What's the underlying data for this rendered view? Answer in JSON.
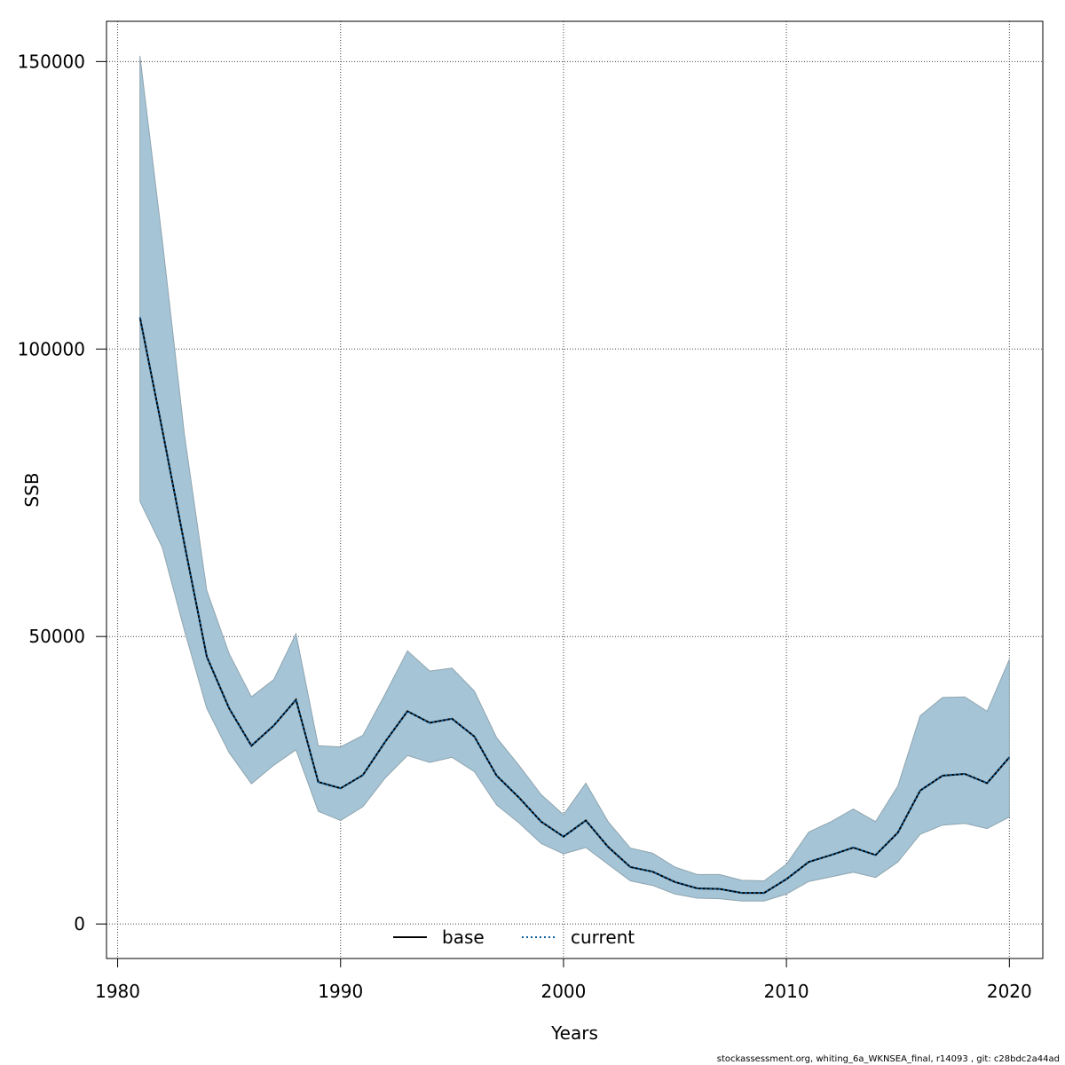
{
  "chart_data": {
    "type": "area",
    "title": "",
    "xlabel": "Years",
    "ylabel": "SSB",
    "xlim": [
      1979.5,
      2021.5
    ],
    "ylim": [
      -6000,
      157000
    ],
    "grid": true,
    "x_ticks": [
      1980,
      1990,
      2000,
      2010,
      2020
    ],
    "y_ticks": [
      0,
      50000,
      100000,
      150000
    ],
    "x_tick_labels": [
      "1980",
      "1990",
      "2000",
      "2010",
      "2020"
    ],
    "y_tick_labels": [
      "0",
      "50000",
      "100000",
      "150000"
    ],
    "years": [
      1981,
      1982,
      1983,
      1984,
      1985,
      1986,
      1987,
      1988,
      1989,
      1990,
      1991,
      1992,
      1993,
      1994,
      1995,
      1996,
      1997,
      1998,
      1999,
      2000,
      2001,
      2002,
      2003,
      2004,
      2005,
      2006,
      2007,
      2008,
      2009,
      2010,
      2011,
      2012,
      2013,
      2014,
      2015,
      2016,
      2017,
      2018,
      2019,
      2020
    ],
    "series": [
      {
        "name": "base",
        "style": "solid",
        "color": "#000000",
        "values": [
          105500,
          86000,
          66000,
          46500,
          37500,
          31000,
          34500,
          39000,
          24700,
          23600,
          25900,
          31700,
          37000,
          35000,
          35700,
          32600,
          25800,
          22000,
          17800,
          15200,
          18000,
          13400,
          9900,
          9100,
          7300,
          6200,
          6100,
          5400,
          5400,
          7800,
          10800,
          12000,
          13300,
          12000,
          15900,
          23200,
          25800,
          26100,
          24500,
          29000
        ]
      },
      {
        "name": "current",
        "style": "dotted",
        "color": "#0b5fa0",
        "values": [
          105500,
          86000,
          66000,
          46500,
          37500,
          31000,
          34500,
          39000,
          24700,
          23600,
          25900,
          31700,
          37000,
          35000,
          35700,
          32600,
          25800,
          22000,
          17800,
          15200,
          18000,
          13400,
          9900,
          9100,
          7300,
          6200,
          6100,
          5400,
          5400,
          7800,
          10800,
          12000,
          13300,
          12000,
          15900,
          23200,
          25800,
          26100,
          24500,
          29000
        ]
      }
    ],
    "confidence_band": {
      "color": "#a5c4d5",
      "lower": [
        73500,
        65500,
        51000,
        37500,
        29800,
        24400,
        27600,
        30300,
        19600,
        18000,
        20400,
        25400,
        29300,
        28100,
        29000,
        26500,
        20700,
        17600,
        14000,
        12200,
        13300,
        10400,
        7500,
        6700,
        5200,
        4500,
        4400,
        4000,
        4000,
        5200,
        7400,
        8200,
        9000,
        8100,
        10800,
        15600,
        17200,
        17500,
        16600,
        18600
      ],
      "upper": [
        151000,
        119000,
        85000,
        58000,
        47000,
        39500,
        42500,
        50500,
        31000,
        30800,
        32800,
        40000,
        47500,
        44000,
        44500,
        40500,
        32400,
        27600,
        22500,
        19000,
        24500,
        17800,
        13200,
        12300,
        9900,
        8600,
        8600,
        7600,
        7500,
        10400,
        16000,
        17800,
        20000,
        17800,
        24000,
        36200,
        39400,
        39500,
        37000,
        46000
      ]
    },
    "legend": {
      "placement": "bottom-center",
      "entries": [
        "base",
        "current"
      ]
    }
  },
  "footer": "stockassessment.org, whiting_6a_WKNSEA_final, r14093 , git: c28bdc2a44ad"
}
